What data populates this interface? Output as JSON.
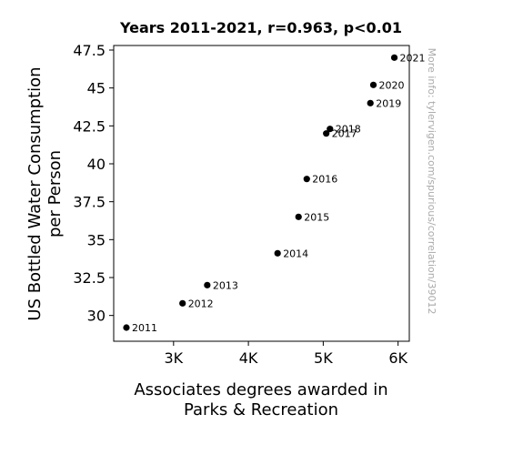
{
  "chart_data": {
    "type": "scatter",
    "title": "Years 2011-2021, r=0.963, p<0.01",
    "xlabel_lines": [
      "Associates degrees awarded in",
      "Parks & Recreation"
    ],
    "ylabel_lines": [
      "US Bottled Water Consumption",
      "per Person"
    ],
    "side_note": "More info: tylervigen.com/spurious/correlation/39012",
    "xlim": [
      2200,
      6150
    ],
    "ylim": [
      28.3,
      47.8
    ],
    "x_ticks": [
      {
        "value": 3000,
        "label": "3K"
      },
      {
        "value": 4000,
        "label": "4K"
      },
      {
        "value": 5000,
        "label": "5K"
      },
      {
        "value": 6000,
        "label": "6K"
      }
    ],
    "y_ticks": [
      {
        "value": 30,
        "label": "30"
      },
      {
        "value": 32.5,
        "label": "32.5"
      },
      {
        "value": 35,
        "label": "35"
      },
      {
        "value": 37.5,
        "label": "37.5"
      },
      {
        "value": 40,
        "label": "40"
      },
      {
        "value": 42.5,
        "label": "42.5"
      },
      {
        "value": 45,
        "label": "45"
      },
      {
        "value": 47.5,
        "label": "47.5"
      }
    ],
    "points": [
      {
        "label": "2011",
        "x": 2370,
        "y": 29.2
      },
      {
        "label": "2012",
        "x": 3120,
        "y": 30.8
      },
      {
        "label": "2013",
        "x": 3450,
        "y": 32.0
      },
      {
        "label": "2014",
        "x": 4390,
        "y": 34.1
      },
      {
        "label": "2015",
        "x": 4670,
        "y": 36.5
      },
      {
        "label": "2016",
        "x": 4780,
        "y": 39.0
      },
      {
        "label": "2017",
        "x": 5040,
        "y": 42.0
      },
      {
        "label": "2018",
        "x": 5090,
        "y": 42.3
      },
      {
        "label": "2019",
        "x": 5630,
        "y": 44.0
      },
      {
        "label": "2020",
        "x": 5670,
        "y": 45.2
      },
      {
        "label": "2021",
        "x": 5950,
        "y": 47.0
      }
    ],
    "marker_color": "#000000",
    "grid": false,
    "legend": "none"
  }
}
